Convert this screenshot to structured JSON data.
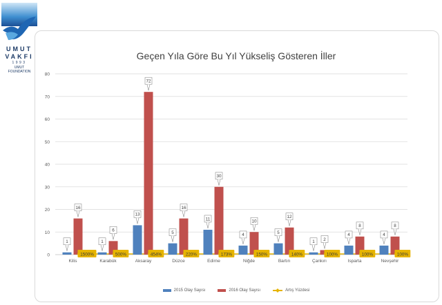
{
  "logo": {
    "line1": "UMUT",
    "line2": "VAKFI",
    "line3": "1993",
    "line4": "UMUT",
    "line5": "FOUNDATION"
  },
  "colors": {
    "series_2015": "#4f81bd",
    "series_2016": "#c0504d",
    "series_pct": "#e6b400",
    "gridline": "#d9d9d9",
    "axis_text": "#595959"
  },
  "chart_data": {
    "type": "bar",
    "title": "Geçen Yıla Göre Bu Yıl Yükseliş Gösteren İller",
    "categories": [
      "Kilis",
      "Karabük",
      "Aksaray",
      "Düzce",
      "Edirne",
      "Niğde",
      "Bartın",
      "Çankırı",
      "Isparta",
      "Nevşehir"
    ],
    "series": [
      {
        "name": "2015 Olay Sayısı",
        "values": [
          1,
          1,
          13,
          5,
          11,
          4,
          5,
          1,
          4,
          4
        ]
      },
      {
        "name": "2016 Olay Sayısı",
        "values": [
          16,
          6,
          72,
          16,
          30,
          10,
          12,
          2,
          8,
          8
        ]
      },
      {
        "name": "Artış Yüzdesi",
        "type": "line",
        "labels": [
          "1500%",
          "500%",
          "454%",
          "220%",
          "173%",
          "150%",
          "140%",
          "100%",
          "100%",
          "100%"
        ]
      }
    ],
    "ylim": [
      0,
      80
    ],
    "yticks": [
      0,
      10,
      20,
      30,
      40,
      50,
      60,
      70,
      80
    ],
    "grid": true,
    "legend": "bottom"
  }
}
